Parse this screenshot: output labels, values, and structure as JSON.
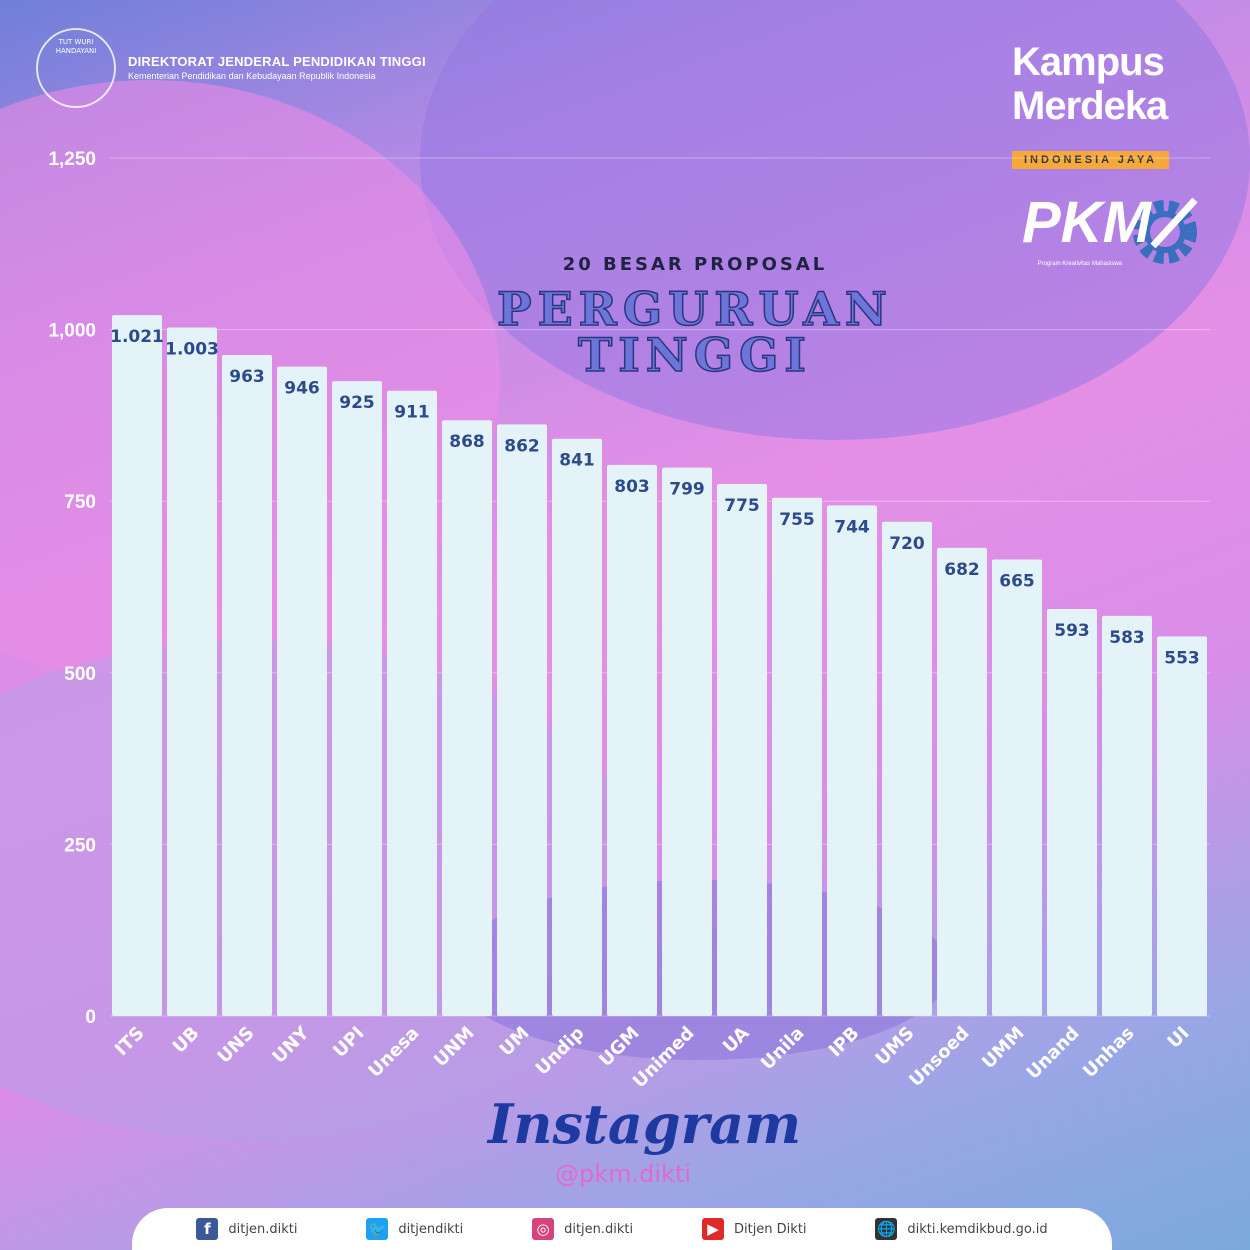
{
  "header": {
    "org": "DIREKTORAT JENDERAL PENDIDIKAN TINGGI",
    "sub": "Kementerian Pendidikan dan Kebudayaan Republik Indonesia",
    "emblem_text": "TUT WURI HANDAYANI"
  },
  "logos": {
    "kampus": "Kampus",
    "merdeka": "Merdeka",
    "ribbon": "INDONESIA JAYA",
    "pkm": "PKM",
    "pkm_sub": "Program Kreativitas Mahasiswa"
  },
  "chart_data": {
    "type": "bar",
    "title": "20 BESAR PROPOSAL",
    "subtitle": "PERGURUAN TINGGI",
    "categories": [
      "ITS",
      "UB",
      "UNS",
      "UNY",
      "UPI",
      "Unesa",
      "UNM",
      "UM",
      "Undip",
      "UGM",
      "Unimed",
      "UA",
      "Unila",
      "IPB",
      "UMS",
      "Unsoed",
      "UMM",
      "Unand",
      "Unhas",
      "UI"
    ],
    "values": [
      1021,
      1003,
      963,
      946,
      925,
      911,
      868,
      862,
      841,
      803,
      799,
      775,
      755,
      744,
      720,
      682,
      665,
      593,
      583,
      553
    ],
    "value_labels": [
      "1.021",
      "1.003",
      "963",
      "946",
      "925",
      "911",
      "868",
      "862",
      "841",
      "803",
      "799",
      "775",
      "755",
      "744",
      "720",
      "682",
      "665",
      "593",
      "583",
      "553"
    ],
    "ylim": [
      0,
      1250
    ],
    "yticks": [
      0,
      250,
      500,
      750,
      1000,
      1250
    ],
    "ytick_labels": [
      "0",
      "250",
      "500",
      "750",
      "1,000",
      "1,250"
    ],
    "grid": true,
    "bar_color": "#e3f3f8",
    "label_color": "#2d4a8a"
  },
  "social": {
    "instagram_title": "Instagram",
    "instagram_handle": "@pkm.dikti",
    "items": [
      {
        "icon": "facebook-icon",
        "label": "ditjen.dikti",
        "color": "#3b5998",
        "glyph": "f"
      },
      {
        "icon": "twitter-icon",
        "label": "ditjendikti",
        "color": "#1da1f2",
        "glyph": "🐦"
      },
      {
        "icon": "instagram-icon",
        "label": "ditjen.dikti",
        "color": "#d6447e",
        "glyph": "◎"
      },
      {
        "icon": "youtube-icon",
        "label": "Ditjen Dikti",
        "color": "#e02a2a",
        "glyph": "▶"
      },
      {
        "icon": "globe-icon",
        "label": "dikti.kemdikbud.go.id",
        "color": "#333333",
        "glyph": "🌐"
      }
    ]
  }
}
